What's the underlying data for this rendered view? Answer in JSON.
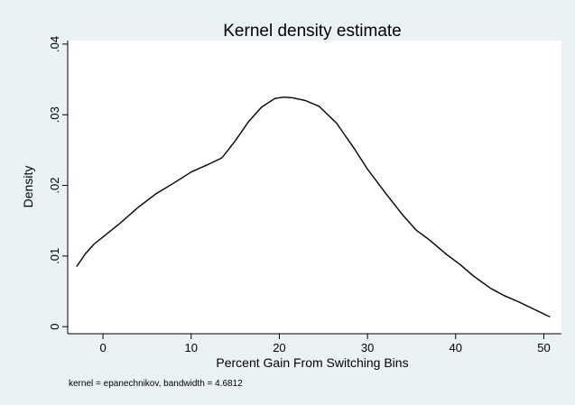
{
  "chart_data": {
    "type": "line",
    "title": "Kernel density estimate",
    "xlabel": "Percent Gain From Switching Bins",
    "ylabel": "Density",
    "note": "kernel = epanechnikov, bandwidth = 4.6812",
    "xlim": [
      -4,
      52
    ],
    "ylim": [
      -0.001,
      0.0405
    ],
    "x_ticks": [
      0,
      10,
      20,
      30,
      40,
      50
    ],
    "x_tick_labels": [
      "0",
      "10",
      "20",
      "30",
      "40",
      "50"
    ],
    "y_ticks": [
      0,
      0.01,
      0.02,
      0.03,
      0.04
    ],
    "y_tick_labels": [
      "0",
      ".01",
      ".02",
      ".03",
      ".04"
    ],
    "grid": false,
    "series": [
      {
        "x": [
          -3,
          -2,
          -1,
          0,
          2,
          4,
          6,
          8,
          10,
          12,
          13.5,
          15,
          16.5,
          18,
          19.5,
          20.5,
          21.5,
          23,
          24.5,
          26.5,
          28.5,
          30,
          32,
          34,
          35.5,
          37,
          39,
          40.5,
          42,
          44,
          45.5,
          47,
          48.5,
          50,
          50.7
        ],
        "y": [
          0.0085,
          0.0103,
          0.0117,
          0.0127,
          0.0147,
          0.0169,
          0.0188,
          0.0203,
          0.0219,
          0.023,
          0.0239,
          0.0263,
          0.029,
          0.0311,
          0.0323,
          0.0325,
          0.0324,
          0.032,
          0.0312,
          0.0288,
          0.0252,
          0.0223,
          0.019,
          0.0158,
          0.0137,
          0.0123,
          0.0102,
          0.0088,
          0.0072,
          0.0054,
          0.0044,
          0.0036,
          0.0027,
          0.0018,
          0.0014
        ]
      }
    ],
    "colors": {
      "background": "#eaf2f3",
      "plot_background": "#ffffff",
      "line": "#000000"
    }
  }
}
